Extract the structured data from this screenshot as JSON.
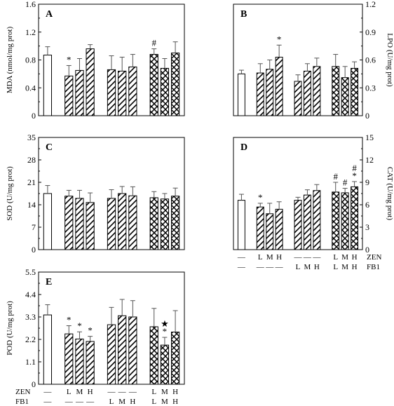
{
  "colors": {
    "axis": "#000000",
    "bar_fill": "#ffffff",
    "bar_stroke": "#000000"
  },
  "categories": [
    "Control",
    "ZEN-L",
    "ZEN-M",
    "ZEN-H",
    "FB1-L",
    "FB1-M",
    "FB1-H",
    "ZEN+FB1-L",
    "ZEN+FB1-M",
    "ZEN+FB1-H"
  ],
  "group_labels": {
    "zen_row": [
      "—",
      "L",
      "M",
      "H",
      "—",
      "—",
      "—",
      "L",
      "M",
      "H"
    ],
    "fb1_row": [
      "—",
      "—",
      "—",
      "—",
      "L",
      "M",
      "H",
      "L",
      "M",
      "H"
    ],
    "zen_name": "ZEN",
    "fb1_name": "FB1"
  },
  "chart_data": [
    {
      "type": "bar",
      "panel": "A",
      "ylabel": "MDA (nmol/mg prot)",
      "ylim": [
        0,
        1.6
      ],
      "yticks": [
        "0",
        "0.4",
        "0.8",
        "1.2",
        "1.6"
      ],
      "ytick_values": [
        0,
        0.4,
        0.8,
        1.2,
        1.6
      ],
      "axis_side": "left",
      "show_group_labels": false,
      "values": [
        0.87,
        0.57,
        0.65,
        0.96,
        0.66,
        0.64,
        0.7,
        0.88,
        0.68,
        0.9
      ],
      "errors": [
        0.12,
        0.15,
        0.17,
        0.06,
        0.2,
        0.2,
        0.18,
        0.08,
        0.14,
        0.16
      ],
      "marks": [
        "",
        "*",
        "",
        "",
        "",
        "",
        "",
        "#",
        "",
        ""
      ]
    },
    {
      "type": "bar",
      "panel": "B",
      "ylabel": "LPO (U/mg prot)",
      "ylim": [
        0,
        1.2
      ],
      "yticks": [
        "0",
        "0.3",
        "0.6",
        "0.9",
        "1.2"
      ],
      "ytick_values": [
        0,
        0.3,
        0.6,
        0.9,
        1.2
      ],
      "axis_side": "right",
      "show_group_labels": false,
      "values": [
        0.45,
        0.46,
        0.5,
        0.63,
        0.37,
        0.48,
        0.53,
        0.53,
        0.41,
        0.51
      ],
      "errors": [
        0.04,
        0.1,
        0.1,
        0.13,
        0.07,
        0.08,
        0.09,
        0.13,
        0.12,
        0.07
      ],
      "marks": [
        "",
        "",
        "",
        "*",
        "",
        "",
        "",
        "",
        "",
        ""
      ]
    },
    {
      "type": "bar",
      "panel": "C",
      "ylabel": "SOD (U/mg prot)",
      "ylim": [
        0,
        35
      ],
      "yticks": [
        "0",
        "7",
        "14",
        "21",
        "28",
        "35"
      ],
      "ytick_values": [
        0,
        7,
        14,
        21,
        28,
        35
      ],
      "axis_side": "left",
      "show_group_labels": false,
      "values": [
        17.5,
        16.7,
        16.0,
        14.7,
        16.0,
        17.5,
        16.8,
        16.2,
        15.8,
        16.7
      ],
      "errors": [
        2.5,
        1.8,
        2.5,
        3.0,
        2.7,
        2.2,
        2.8,
        1.9,
        1.7,
        2.5
      ],
      "marks": [
        "",
        "",
        "",
        "",
        "",
        "",
        "",
        "",
        "",
        ""
      ]
    },
    {
      "type": "bar",
      "panel": "D",
      "ylabel": "CAT (U/mg prot)",
      "ylim": [
        0,
        15
      ],
      "yticks": [
        "0",
        "3",
        "6",
        "9",
        "12",
        "15"
      ],
      "ytick_values": [
        0,
        3,
        6,
        9,
        12,
        15
      ],
      "axis_side": "right",
      "show_group_labels": true,
      "values": [
        6.6,
        5.7,
        4.8,
        5.4,
        6.6,
        7.3,
        7.9,
        7.7,
        7.6,
        8.4
      ],
      "errors": [
        0.8,
        0.5,
        1.4,
        1.0,
        0.4,
        0.7,
        0.8,
        1.3,
        0.6,
        0.7
      ],
      "marks": [
        "",
        "*",
        "",
        "",
        "",
        "",
        "",
        "#",
        "#",
        "#\n*"
      ]
    },
    {
      "type": "bar",
      "panel": "E",
      "ylabel": "POD (U/mg prot)",
      "ylim": [
        0,
        5.5
      ],
      "yticks": [
        "0",
        "1.1",
        "2.2",
        "3.3",
        "4.4",
        "5.5"
      ],
      "ytick_values": [
        0,
        1.1,
        2.2,
        3.3,
        4.4,
        5.5
      ],
      "axis_side": "left",
      "show_group_labels": true,
      "values": [
        3.4,
        2.47,
        2.22,
        2.1,
        2.92,
        3.36,
        3.3,
        2.82,
        1.92,
        2.56
      ],
      "errors": [
        0.5,
        0.4,
        0.35,
        0.25,
        0.85,
        0.8,
        0.8,
        0.9,
        0.38,
        1.05
      ],
      "marks": [
        "",
        "*",
        "*",
        "*",
        "",
        "",
        "",
        "",
        "★\n*",
        ""
      ]
    }
  ]
}
